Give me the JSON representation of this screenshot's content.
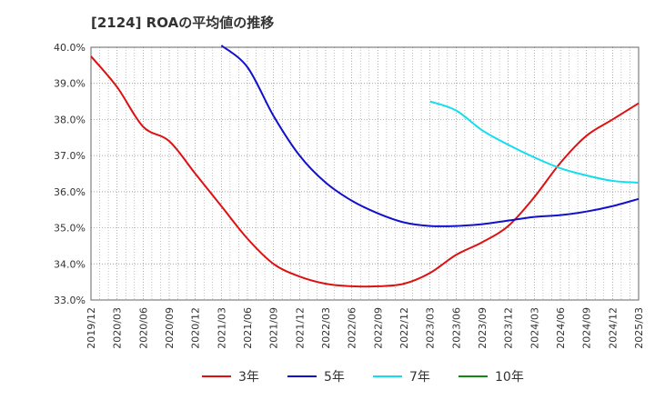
{
  "title": "[2124]  ROAの平均値の推移",
  "chart_data": {
    "type": "line",
    "title": "[2124]  ROAの平均値の推移",
    "xlabel": "",
    "ylabel": "",
    "ylim": [
      33.0,
      40.0
    ],
    "y_ticks": [
      "33.0%",
      "34.0%",
      "35.0%",
      "36.0%",
      "37.0%",
      "38.0%",
      "39.0%",
      "40.0%"
    ],
    "x_ticks": [
      "2019/12",
      "2020/03",
      "2020/06",
      "2020/09",
      "2020/12",
      "2021/03",
      "2021/06",
      "2021/09",
      "2021/12",
      "2022/03",
      "2022/06",
      "2022/09",
      "2022/12",
      "2023/03",
      "2023/06",
      "2023/09",
      "2023/12",
      "2024/03",
      "2024/06",
      "2024/09",
      "2024/12",
      "2025/03"
    ],
    "grid": true,
    "legend_position": "bottom",
    "series": [
      {
        "name": "3年",
        "color": "#dd1111",
        "values": [
          39.75,
          38.9,
          37.8,
          37.4,
          36.5,
          35.6,
          34.7,
          34.0,
          33.65,
          33.45,
          33.38,
          33.38,
          33.45,
          33.75,
          34.25,
          34.6,
          35.05,
          35.85,
          36.8,
          37.55,
          38.0,
          38.45
        ]
      },
      {
        "name": "5年",
        "color": "#1111cc",
        "values": [
          null,
          null,
          null,
          null,
          null,
          40.05,
          39.45,
          38.1,
          37.0,
          36.25,
          35.75,
          35.4,
          35.15,
          35.05,
          35.05,
          35.1,
          35.2,
          35.3,
          35.35,
          35.45,
          35.6,
          35.8
        ]
      },
      {
        "name": "7年",
        "color": "#11ddee",
        "values": [
          null,
          null,
          null,
          null,
          null,
          null,
          null,
          null,
          null,
          null,
          null,
          null,
          null,
          38.5,
          38.25,
          37.7,
          37.3,
          36.95,
          36.65,
          36.45,
          36.3,
          36.25
        ]
      },
      {
        "name": "10年",
        "color": "#118811",
        "values": []
      }
    ]
  }
}
